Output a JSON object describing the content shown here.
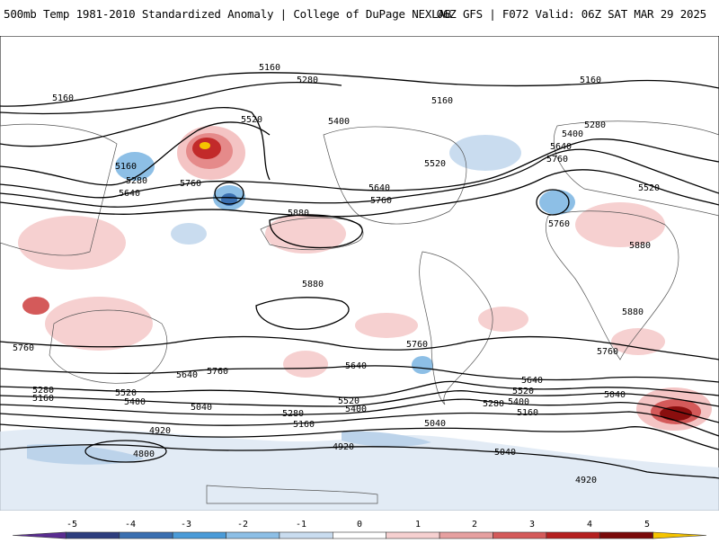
{
  "header": {
    "title": "500mb Temp 1981-2010 Standardized Anomaly | College of DuPage NEXLAB",
    "run_info": "06Z GFS | F072 Valid: 06Z SAT MAR 29 2025"
  },
  "map": {
    "height_contours": [
      {
        "label": "5160",
        "name": "contour-label-5160-np-pacific"
      },
      {
        "label": "5280",
        "name": "contour-label-5280-np-pacific"
      },
      {
        "label": "5160",
        "name": "contour-label-5160-w-edge"
      },
      {
        "label": "5520",
        "name": "contour-label-5520-aleutian"
      },
      {
        "label": "5400",
        "name": "contour-label-5400-goa"
      },
      {
        "label": "5160",
        "name": "contour-label-5160-hudson"
      },
      {
        "label": "5160",
        "name": "contour-label-5160-arctic-e"
      },
      {
        "label": "5280",
        "name": "contour-label-5280-europe"
      },
      {
        "label": "5400",
        "name": "contour-label-5400-europe"
      },
      {
        "label": "5640",
        "name": "contour-label-5640-atlantic"
      },
      {
        "label": "5760",
        "name": "contour-label-5760-atlantic"
      },
      {
        "label": "5520",
        "name": "contour-label-5520-canada"
      },
      {
        "label": "5520",
        "name": "contour-label-5520-asia"
      },
      {
        "label": "5160",
        "name": "contour-label-5160-asia"
      },
      {
        "label": "5280",
        "name": "contour-label-5280-asia"
      },
      {
        "label": "5640",
        "name": "contour-label-5640-asia"
      },
      {
        "label": "5760",
        "name": "contour-label-5760-pacific"
      },
      {
        "label": "5640",
        "name": "contour-label-5640-us"
      },
      {
        "label": "5760",
        "name": "contour-label-5760-us"
      },
      {
        "label": "5880",
        "name": "contour-label-5880-pacific"
      },
      {
        "label": "5760",
        "name": "contour-label-5760-atl-low"
      },
      {
        "label": "5880",
        "name": "contour-label-5880-africa"
      },
      {
        "label": "5880",
        "name": "contour-label-5880-epacific"
      },
      {
        "label": "5880",
        "name": "contour-label-5880-indian"
      },
      {
        "label": "5760",
        "name": "contour-label-5760-w-south"
      },
      {
        "label": "5640",
        "name": "contour-label-5640-s-pacific"
      },
      {
        "label": "5760",
        "name": "contour-label-5760-s-pacific"
      },
      {
        "label": "5760",
        "name": "contour-label-5760-s-america"
      },
      {
        "label": "5640",
        "name": "contour-label-5640-s-america"
      },
      {
        "label": "5760",
        "name": "contour-label-5760-s-atlantic"
      },
      {
        "label": "5640",
        "name": "contour-label-5640-s-atlantic"
      },
      {
        "label": "5520",
        "name": "contour-label-5520-s-atlantic"
      },
      {
        "label": "5400",
        "name": "contour-label-5400-s-atlantic"
      },
      {
        "label": "5280",
        "name": "contour-label-5280-s-atlantic"
      },
      {
        "label": "5160",
        "name": "contour-label-5160-s-atlantic"
      },
      {
        "label": "5040",
        "name": "contour-label-5040-s-indian"
      },
      {
        "label": "5280",
        "name": "contour-label-5280-sw"
      },
      {
        "label": "5160",
        "name": "contour-label-5160-sw"
      },
      {
        "label": "5520",
        "name": "contour-label-5520-sw"
      },
      {
        "label": "5400",
        "name": "contour-label-5400-sw"
      },
      {
        "label": "5040",
        "name": "contour-label-5040-sw"
      },
      {
        "label": "4920",
        "name": "contour-label-4920-sw"
      },
      {
        "label": "4800",
        "name": "contour-label-4800-sw"
      },
      {
        "label": "5520",
        "name": "contour-label-5520-s-pac"
      },
      {
        "label": "5400",
        "name": "contour-label-5400-s-pac"
      },
      {
        "label": "5280",
        "name": "contour-label-5280-s-pac"
      },
      {
        "label": "5160",
        "name": "contour-label-5160-s-pac"
      },
      {
        "label": "5040",
        "name": "contour-label-5040-s-pac"
      },
      {
        "label": "4920",
        "name": "contour-label-4920-s-pac"
      },
      {
        "label": "5040",
        "name": "contour-label-5040-s-atl2"
      },
      {
        "label": "4920",
        "name": "contour-label-4920-antarctic"
      }
    ]
  },
  "colorbar": {
    "ticks": [
      "-5",
      "-4",
      "-3",
      "-2",
      "-1",
      "0",
      "1",
      "2",
      "3",
      "4",
      "5"
    ],
    "colors": [
      "#5a2d91",
      "#2e3e7e",
      "#3a6fb0",
      "#4a9bd8",
      "#8dbfe6",
      "#c9dcef",
      "#ffffff",
      "#f6d0d0",
      "#e6a0a0",
      "#d45a5a",
      "#b52020",
      "#7a0a0a",
      "#f5c400"
    ]
  }
}
